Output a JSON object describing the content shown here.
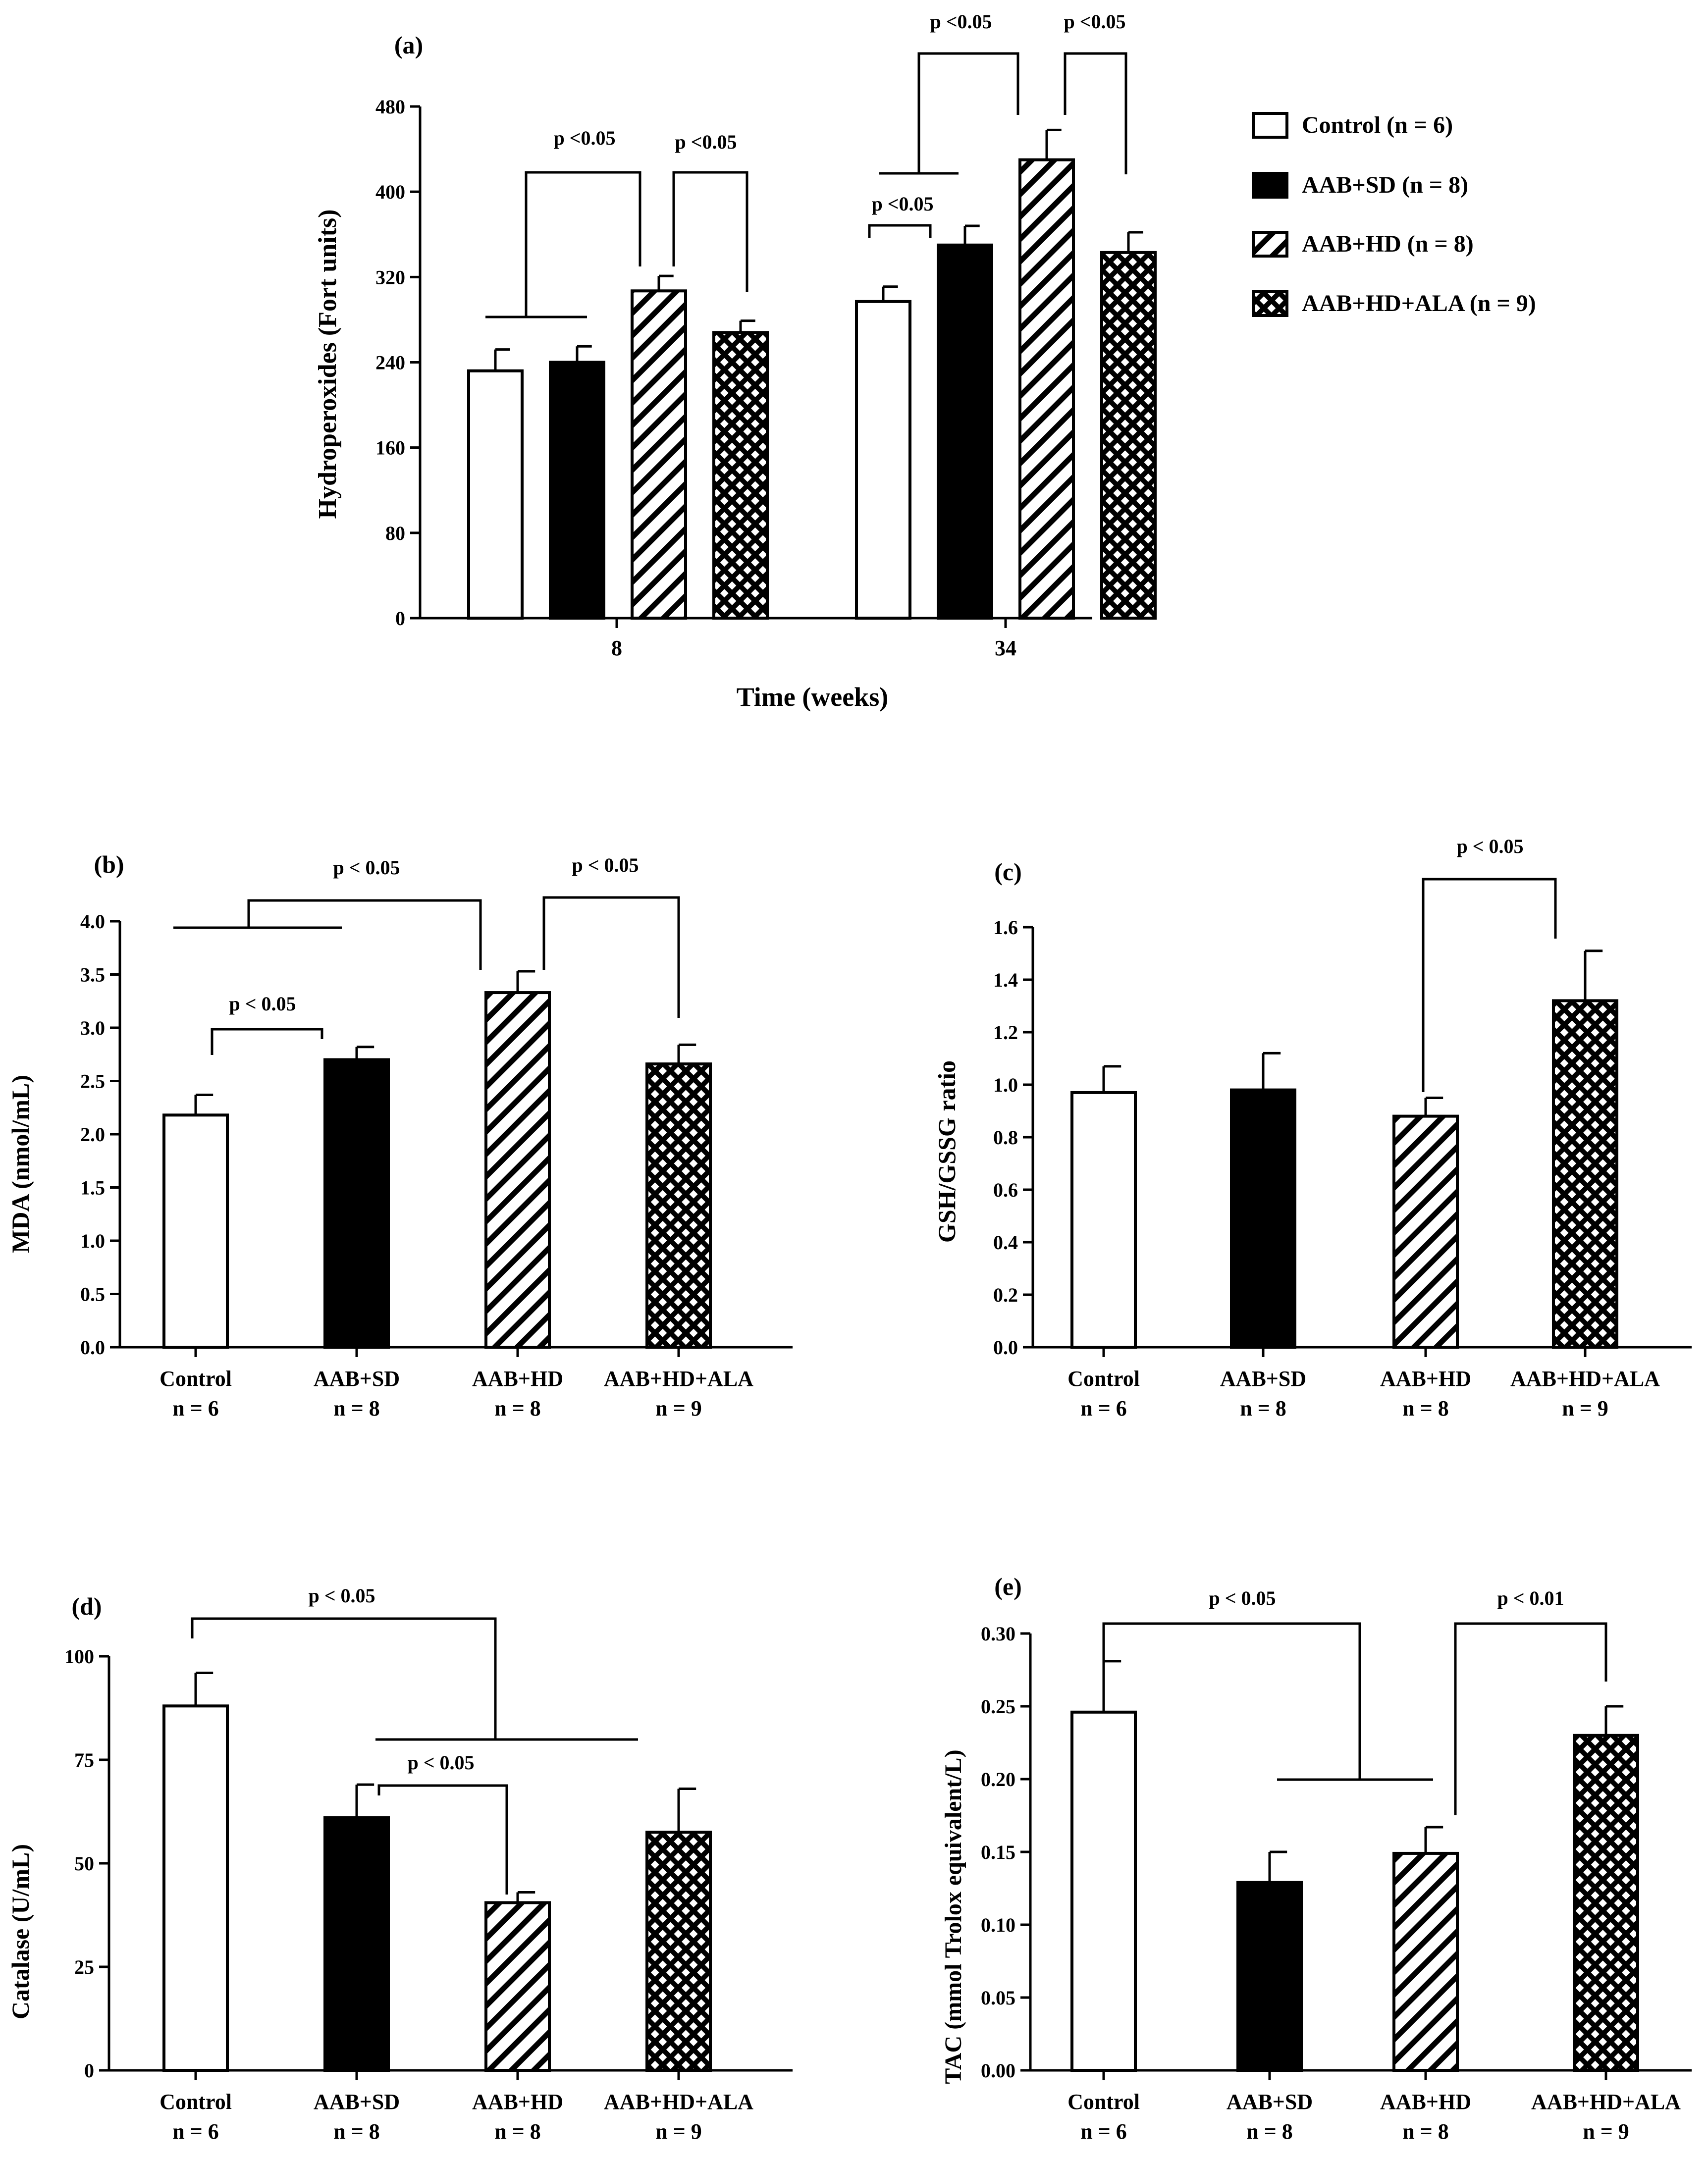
{
  "figure_title": "",
  "legend": {
    "entries": [
      {
        "label": "Control (n = 6)",
        "pattern": "white"
      },
      {
        "label": "AAB+SD (n = 8)",
        "pattern": "black"
      },
      {
        "label": "AAB+HD (n = 8)",
        "pattern": "hatch"
      },
      {
        "label": "AAB+HD+ALA (n = 9)",
        "pattern": "cross"
      }
    ]
  },
  "chart_data": [
    {
      "id": "a",
      "panel_label": "(a)",
      "type": "bar",
      "ylabel": "Hydroperoxides (Fort units)",
      "xlabel": "Time (weeks)",
      "ylim": [
        0,
        480
      ],
      "yticks": [
        0,
        80,
        160,
        240,
        320,
        400,
        480
      ],
      "ytick_labels": [
        "0",
        "80",
        "160",
        "240",
        "320",
        "400",
        "480"
      ],
      "categories": [
        "8",
        "34"
      ],
      "series": [
        {
          "name": "Control (n = 6)",
          "pattern": "white",
          "values": [
            232,
            297
          ],
          "errors": [
            20,
            14
          ]
        },
        {
          "name": "AAB+SD (n = 8)",
          "pattern": "black",
          "values": [
            240,
            350
          ],
          "errors": [
            15,
            18
          ]
        },
        {
          "name": "AAB+HD (n = 8)",
          "pattern": "hatch",
          "values": [
            307,
            430
          ],
          "errors": [
            14,
            28
          ]
        },
        {
          "name": "AAB+HD+ALA (n = 9)",
          "pattern": "cross",
          "values": [
            268,
            343
          ],
          "errors": [
            11,
            19
          ]
        }
      ],
      "annotations": [
        {
          "text": "p <0.05"
        },
        {
          "text": "p <0.05"
        },
        {
          "text": "p <0.05"
        },
        {
          "text": "p <0.05"
        },
        {
          "text": "p <0.05"
        }
      ]
    },
    {
      "id": "b",
      "panel_label": "(b)",
      "type": "bar",
      "ylabel": "MDA (nmol/mL)",
      "ylim": [
        0,
        4.0
      ],
      "yticks": [
        0,
        0.5,
        1.0,
        1.5,
        2.0,
        2.5,
        3.0,
        3.5,
        4.0
      ],
      "ytick_labels": [
        "0.0",
        "0.5",
        "1.0",
        "1.5",
        "2.0",
        "2.5",
        "3.0",
        "3.5",
        "4.0"
      ],
      "categories": [
        "Control",
        "AAB+SD",
        "AAB+HD",
        "AAB+HD+ALA"
      ],
      "category_n": [
        "n = 6",
        "n = 8",
        "n = 8",
        "n = 9"
      ],
      "patterns": [
        "white",
        "black",
        "hatch",
        "cross"
      ],
      "values": [
        2.18,
        2.7,
        3.33,
        2.66
      ],
      "errors": [
        0.19,
        0.12,
        0.2,
        0.18
      ],
      "annotations": [
        {
          "text": "p < 0.05"
        },
        {
          "text": "p < 0.05"
        },
        {
          "text": "p < 0.05"
        }
      ]
    },
    {
      "id": "c",
      "panel_label": "(c)",
      "type": "bar",
      "ylabel": "GSH/GSSG ratio",
      "ylim": [
        0,
        1.6
      ],
      "yticks": [
        0,
        0.2,
        0.4,
        0.6,
        0.8,
        1.0,
        1.2,
        1.4,
        1.6
      ],
      "ytick_labels": [
        "0.0",
        "0.2",
        "0.4",
        "0.6",
        "0.8",
        "1.0",
        "1.2",
        "1.4",
        "1.6"
      ],
      "categories": [
        "Control",
        "AAB+SD",
        "AAB+HD",
        "AAB+HD+ALA"
      ],
      "category_n": [
        "n = 6",
        "n = 8",
        "n = 8",
        "n = 9"
      ],
      "patterns": [
        "white",
        "black",
        "hatch",
        "cross"
      ],
      "values": [
        0.97,
        0.98,
        0.88,
        1.32
      ],
      "errors": [
        0.1,
        0.14,
        0.07,
        0.19
      ],
      "annotations": [
        {
          "text": "p < 0.05"
        }
      ]
    },
    {
      "id": "d",
      "panel_label": "(d)",
      "type": "bar",
      "ylabel": "Catalase (U/mL)",
      "ylim": [
        0,
        100
      ],
      "yticks": [
        0,
        25,
        50,
        75,
        100
      ],
      "ytick_labels": [
        "0",
        "25",
        "50",
        "75",
        "100"
      ],
      "categories": [
        "Control",
        "AAB+SD",
        "AAB+HD",
        "AAB+HD+ALA"
      ],
      "category_n": [
        "n = 6",
        "n = 8",
        "n = 8",
        "n = 9"
      ],
      "patterns": [
        "white",
        "black",
        "hatch",
        "cross"
      ],
      "values": [
        88,
        61,
        40.5,
        57.5
      ],
      "errors": [
        8,
        8,
        2.5,
        10.5
      ],
      "annotations": [
        {
          "text": "p < 0.05"
        },
        {
          "text": "p < 0.05"
        }
      ]
    },
    {
      "id": "e",
      "panel_label": "(e)",
      "type": "bar",
      "ylabel": "TAC (mmol Trolox equivalent/L)",
      "ylim": [
        0,
        0.3
      ],
      "yticks": [
        0,
        0.05,
        0.1,
        0.15,
        0.2,
        0.25,
        0.3
      ],
      "ytick_labels": [
        "0.00",
        "0.05",
        "0.10",
        "0.15",
        "0.20",
        "0.25",
        "0.30"
      ],
      "categories": [
        "Control",
        "AAB+SD",
        "AAB+HD",
        "AAB+HD+ALA"
      ],
      "category_n": [
        "n = 6",
        "n = 8",
        "n = 8",
        "n = 9"
      ],
      "patterns": [
        "white",
        "black",
        "hatch",
        "cross"
      ],
      "values": [
        0.246,
        0.129,
        0.149,
        0.23
      ],
      "errors": [
        0.035,
        0.021,
        0.018,
        0.02
      ],
      "annotations": [
        {
          "text": "p < 0.05"
        },
        {
          "text": "p < 0.01"
        }
      ]
    }
  ]
}
